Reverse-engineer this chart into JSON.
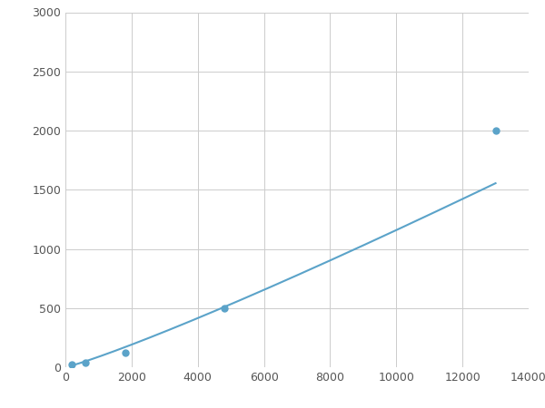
{
  "x_data": [
    200,
    600,
    1800,
    4800,
    13000
  ],
  "y_data": [
    20,
    40,
    120,
    500,
    2000
  ],
  "line_color": "#5ba3c9",
  "marker_color": "#5ba3c9",
  "marker_size": 5,
  "line_width": 1.5,
  "xlim": [
    0,
    14000
  ],
  "ylim": [
    0,
    3000
  ],
  "xticks": [
    0,
    2000,
    4000,
    6000,
    8000,
    10000,
    12000,
    14000
  ],
  "yticks": [
    0,
    500,
    1000,
    1500,
    2000,
    2500,
    3000
  ],
  "grid_color": "#cccccc",
  "bg_color": "#ffffff",
  "figsize": [
    6.0,
    4.5
  ],
  "dpi": 100,
  "tick_fontsize": 9,
  "tick_color": "#555555"
}
